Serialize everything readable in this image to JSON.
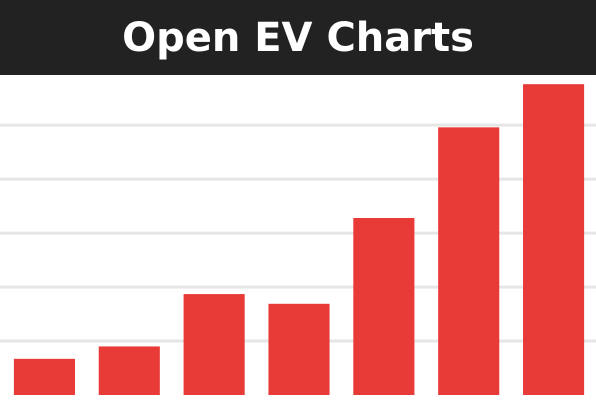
{
  "chart_data": {
    "type": "bar",
    "title": "Open EV Charts",
    "categories": [
      null,
      null,
      null,
      null,
      null,
      null,
      null
    ],
    "values": [
      0.67,
      0.9,
      1.87,
      1.69,
      3.28,
      4.96,
      5.76
    ],
    "color": "#e83a37",
    "ylim": [
      0,
      5.93
    ],
    "yticks": [
      1,
      2,
      3,
      4,
      5
    ],
    "grid": true
  }
}
